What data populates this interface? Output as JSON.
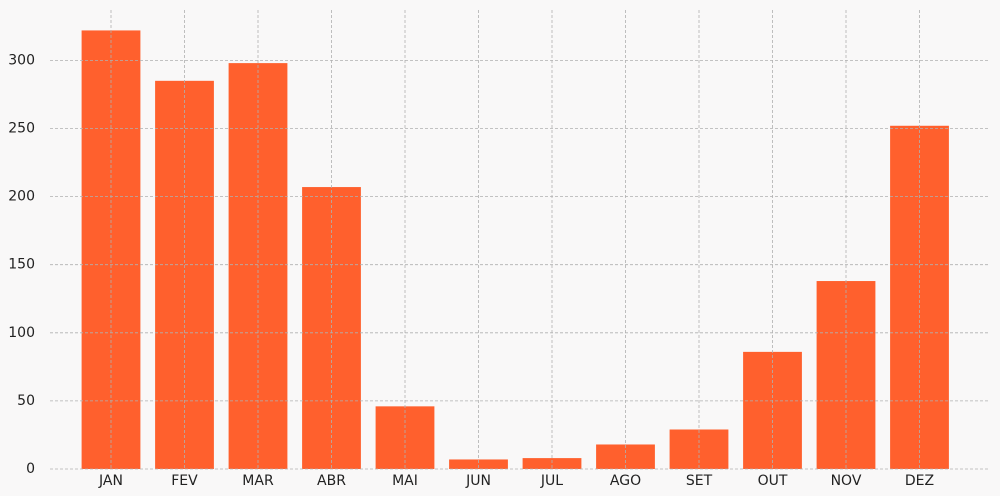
{
  "chart_data": {
    "type": "bar",
    "categories": [
      "JAN",
      "FEV",
      "MAR",
      "ABR",
      "MAI",
      "JUN",
      "JUL",
      "AGO",
      "SET",
      "OUT",
      "NOV",
      "DEZ"
    ],
    "values": [
      322,
      285,
      298,
      207,
      46,
      7,
      8,
      18,
      29,
      86,
      138,
      252
    ],
    "color": "#ff5722",
    "ylim": [
      0,
      337
    ],
    "yticks": [
      0,
      50,
      100,
      150,
      200,
      250,
      300
    ],
    "grid": true
  }
}
